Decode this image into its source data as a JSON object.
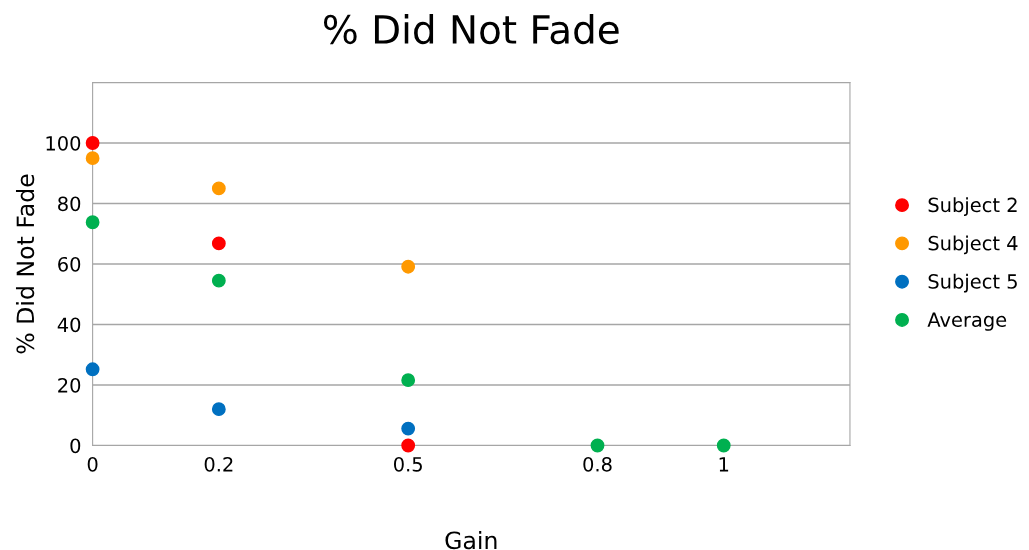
{
  "chart_data": {
    "type": "scatter",
    "title": "% Did Not Fade",
    "xlabel": "Gain",
    "ylabel": "% Did Not Fade",
    "xlim": [
      0,
      1.2
    ],
    "xticks": [
      0,
      0.2,
      0.5,
      0.8,
      1
    ],
    "ylim": [
      0,
      120
    ],
    "yticks": [
      0,
      20,
      40,
      60,
      80,
      100,
      {
        "value": 120,
        "label": null
      }
    ],
    "grid": "y",
    "legend": "right",
    "marker": "circle",
    "series": [
      {
        "name": "Subject 2",
        "color": "#ff0000",
        "x": [
          0,
          0.2,
          0.5
        ],
        "values": [
          100,
          66.8,
          0
        ]
      },
      {
        "name": "Subject 4",
        "color": "#ff9900",
        "x": [
          0,
          0.2,
          0.5
        ],
        "values": [
          95,
          85,
          59.1
        ]
      },
      {
        "name": "Subject 5",
        "color": "#0070c0",
        "x": [
          0,
          0.2,
          0.5
        ],
        "values": [
          25.2,
          12,
          5.6
        ]
      },
      {
        "name": "Average",
        "color": "#00b050",
        "x": [
          0,
          0.2,
          0.5,
          0.8,
          1
        ],
        "values": [
          73.8,
          54.5,
          21.6,
          0,
          0
        ]
      }
    ]
  }
}
